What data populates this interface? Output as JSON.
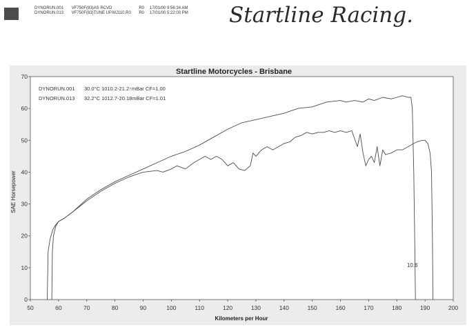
{
  "header": {
    "runs": [
      {
        "file": "DYNORUN.001",
        "desc": "VF750F(83)AS RCVD",
        "code": "R0",
        "datetime": "17/01/00 9:56:34 AM"
      },
      {
        "file": "DYNORUN.013",
        "desc": "VF750F(83)TUNE UP.MJ110.R0",
        "code": "R0",
        "datetime": "17/01/00 5:22:00 PM"
      }
    ],
    "logo_text": "Startline Racing."
  },
  "chart_data": {
    "type": "line",
    "title": "Startline Motorcycles - Brisbane",
    "xlabel": "Kilometers per Hour",
    "ylabel": "SAE Horsepower",
    "xlim": [
      50,
      200
    ],
    "ylim": [
      0,
      70
    ],
    "xticks": [
      50,
      60,
      70,
      80,
      90,
      100,
      110,
      120,
      130,
      140,
      150,
      160,
      170,
      180,
      190,
      200
    ],
    "yticks": [
      0,
      10,
      20,
      30,
      40,
      50,
      60,
      70
    ],
    "grid": false,
    "legend": [
      {
        "run": "DYNORUN.001",
        "text": "30.0°C   1010.2-21.2↑mBar  CF=1.00"
      },
      {
        "run": "DYNORUN.013",
        "text": "32.2°C   1012.7-20.18mBar  CF=1.01"
      }
    ],
    "annotations": [
      {
        "text": "10.6",
        "x": 186,
        "y": 11
      }
    ],
    "line_color": "#4a4a4a",
    "series": [
      {
        "name": "DYNORUN.001",
        "points": [
          [
            57.6,
            0
          ],
          [
            57.8,
            15
          ],
          [
            58.2,
            20
          ],
          [
            59,
            23
          ],
          [
            60,
            24.5
          ],
          [
            62,
            25.5
          ],
          [
            65,
            27.5
          ],
          [
            70,
            31
          ],
          [
            75,
            34
          ],
          [
            80,
            36.5
          ],
          [
            85,
            38.5
          ],
          [
            90,
            40
          ],
          [
            95,
            40.5
          ],
          [
            97,
            40
          ],
          [
            100,
            41
          ],
          [
            102,
            42
          ],
          [
            105,
            41
          ],
          [
            108,
            43
          ],
          [
            110,
            44
          ],
          [
            112,
            45
          ],
          [
            114,
            44
          ],
          [
            116,
            45
          ],
          [
            118,
            44
          ],
          [
            120,
            42
          ],
          [
            122,
            43
          ],
          [
            124,
            41
          ],
          [
            126,
            40.5
          ],
          [
            128,
            42
          ],
          [
            129,
            46
          ],
          [
            130,
            45
          ],
          [
            132,
            47
          ],
          [
            134,
            48
          ],
          [
            136,
            47
          ],
          [
            138,
            48
          ],
          [
            140,
            49
          ],
          [
            142,
            49.5
          ],
          [
            144,
            51
          ],
          [
            146,
            51.5
          ],
          [
            148,
            52.5
          ],
          [
            150,
            52
          ],
          [
            152,
            52.5
          ],
          [
            154,
            52.5
          ],
          [
            156,
            53
          ],
          [
            158,
            52.5
          ],
          [
            160,
            53
          ],
          [
            162,
            52.5
          ],
          [
            164,
            53
          ],
          [
            166,
            48
          ],
          [
            167,
            52
          ],
          [
            168,
            46
          ],
          [
            169,
            42
          ],
          [
            170,
            44
          ],
          [
            171,
            45
          ],
          [
            172,
            43
          ],
          [
            173,
            48
          ],
          [
            174,
            42
          ],
          [
            175,
            47
          ],
          [
            176,
            45.5
          ],
          [
            178,
            46
          ],
          [
            180,
            47
          ],
          [
            182,
            47
          ],
          [
            184,
            48
          ],
          [
            186,
            49
          ],
          [
            187,
            49.5
          ],
          [
            189,
            50
          ],
          [
            190,
            50
          ],
          [
            191,
            49
          ],
          [
            191.8,
            46
          ],
          [
            192.3,
            40
          ],
          [
            192.6,
            20
          ],
          [
            192.8,
            0
          ]
        ]
      },
      {
        "name": "DYNORUN.013",
        "points": [
          [
            56,
            0
          ],
          [
            56.3,
            15
          ],
          [
            57,
            19
          ],
          [
            58,
            22
          ],
          [
            59,
            23.5
          ],
          [
            60,
            24.5
          ],
          [
            62,
            25.5
          ],
          [
            65,
            27.5
          ],
          [
            70,
            31.5
          ],
          [
            75,
            34.5
          ],
          [
            80,
            37
          ],
          [
            85,
            39
          ],
          [
            90,
            41
          ],
          [
            95,
            43
          ],
          [
            100,
            45
          ],
          [
            105,
            46.5
          ],
          [
            110,
            48.5
          ],
          [
            115,
            51
          ],
          [
            120,
            53.5
          ],
          [
            125,
            55.5
          ],
          [
            130,
            56.5
          ],
          [
            135,
            57.5
          ],
          [
            140,
            58.5
          ],
          [
            145,
            60
          ],
          [
            150,
            60.5
          ],
          [
            155,
            62
          ],
          [
            160,
            62.5
          ],
          [
            162,
            62
          ],
          [
            165,
            62.5
          ],
          [
            168,
            62
          ],
          [
            170,
            63
          ],
          [
            172,
            62.5
          ],
          [
            175,
            63.5
          ],
          [
            178,
            63
          ],
          [
            180,
            63.5
          ],
          [
            182,
            64
          ],
          [
            184,
            63.5
          ],
          [
            185,
            63.5
          ],
          [
            185.5,
            60
          ],
          [
            186,
            40
          ],
          [
            186.4,
            15
          ],
          [
            186.6,
            0
          ]
        ]
      }
    ]
  }
}
